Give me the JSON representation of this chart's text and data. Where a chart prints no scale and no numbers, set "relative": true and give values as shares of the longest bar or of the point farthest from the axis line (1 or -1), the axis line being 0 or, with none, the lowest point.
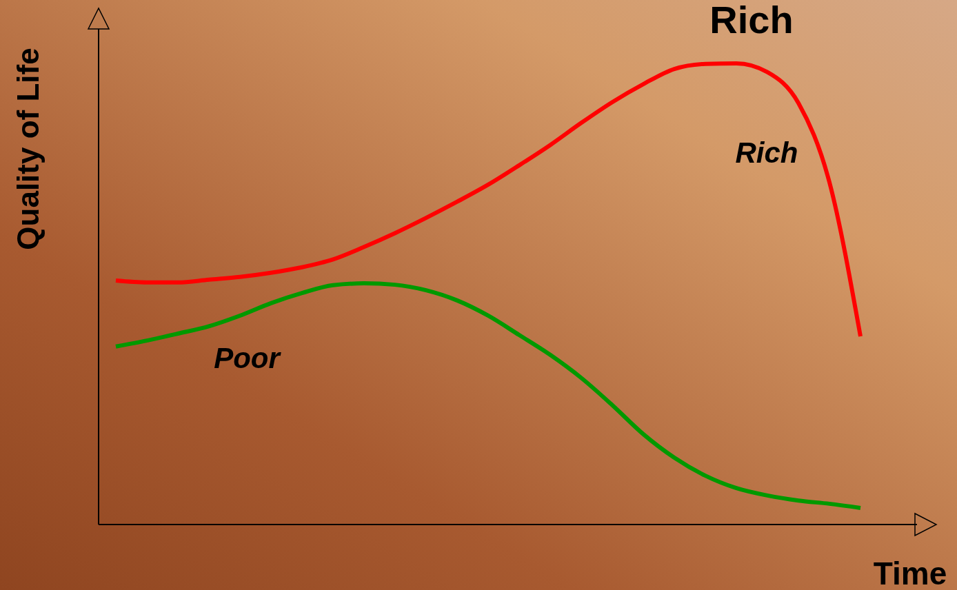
{
  "chart_data": {
    "type": "line",
    "title": "Rich",
    "xlabel": "Time",
    "ylabel": "Quality of Life",
    "relative": true,
    "legend": false,
    "marker": "none",
    "line_style": "solid",
    "categories": [
      null,
      null,
      null,
      null,
      null,
      null,
      null,
      null,
      null,
      null,
      null,
      null,
      null,
      null,
      null,
      null,
      null,
      null,
      null,
      null,
      null,
      null,
      null,
      null,
      null
    ],
    "series": [
      {
        "name": "Rich",
        "color": "#ff0000",
        "values": [
          0.529,
          0.525,
          0.525,
          0.531,
          0.537,
          0.546,
          0.558,
          0.575,
          0.602,
          0.632,
          0.665,
          0.7,
          0.737,
          0.779,
          0.823,
          0.871,
          0.916,
          0.955,
          0.988,
          0.999,
          1,
          0.981,
          0.914,
          0.742,
          0.408
        ]
      },
      {
        "name": "Poor",
        "color": "#009900",
        "values": [
          0.386,
          0.399,
          0.414,
          0.43,
          0.453,
          0.48,
          0.502,
          0.519,
          0.523,
          0.52,
          0.508,
          0.486,
          0.453,
          0.411,
          0.368,
          0.318,
          0.259,
          0.196,
          0.145,
          0.106,
          0.079,
          0.063,
          0.052,
          0.045,
          0.036
        ]
      }
    ]
  }
}
